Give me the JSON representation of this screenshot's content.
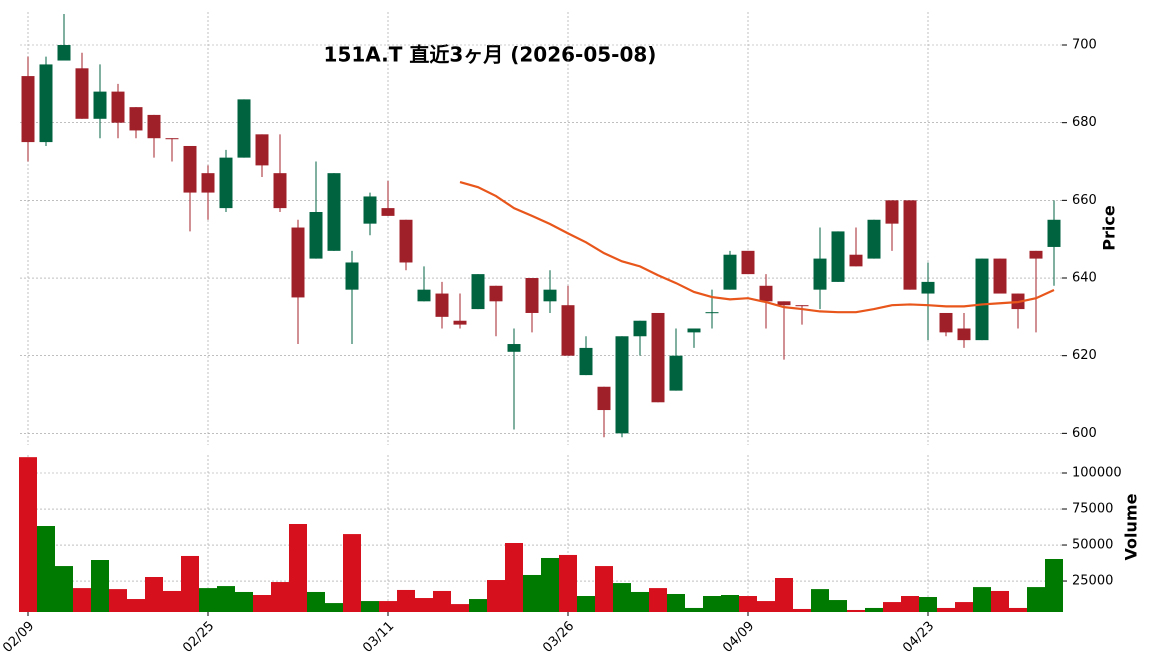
{
  "chart_data": {
    "type": "candlestick",
    "title": "151A.T  直近3ヶ月  (2026-05-08)",
    "ylabel": "Price",
    "categories": [
      "02/09",
      null,
      null,
      null,
      null,
      null,
      null,
      null,
      null,
      null,
      "02/25",
      null,
      null,
      null,
      null,
      null,
      null,
      null,
      null,
      null,
      "03/11",
      null,
      null,
      null,
      null,
      null,
      null,
      null,
      null,
      null,
      "03/26",
      null,
      null,
      null,
      null,
      null,
      null,
      null,
      null,
      null,
      "04/09",
      null,
      null,
      null,
      null,
      null,
      null,
      null,
      null,
      null,
      "04/23",
      null,
      null,
      null,
      null,
      null,
      null,
      null
    ],
    "open": [
      692,
      675,
      696,
      694,
      681,
      688,
      684,
      682,
      676,
      674,
      667,
      658,
      671,
      677,
      667,
      653,
      645,
      647,
      637,
      654,
      658,
      655,
      634,
      636,
      629,
      632,
      638,
      621,
      640,
      634,
      633,
      615,
      612,
      600,
      625,
      631,
      611,
      626,
      631,
      637,
      647,
      638,
      634,
      633,
      637,
      639,
      646,
      645,
      660,
      660,
      636,
      631,
      627,
      624,
      645,
      636,
      647,
      648
    ],
    "high": [
      697,
      697,
      708,
      698,
      695,
      690,
      684,
      682,
      676,
      674,
      669,
      673,
      686,
      677,
      677,
      655,
      670,
      667,
      647,
      662,
      665,
      655,
      643,
      639,
      636,
      641,
      638,
      627,
      640,
      642,
      638,
      625,
      612,
      625,
      629,
      631,
      627,
      627,
      637,
      647,
      647,
      641,
      634,
      633,
      653,
      652,
      653,
      655,
      660,
      660,
      644,
      631,
      631,
      645,
      645,
      636,
      647,
      660
    ],
    "low": [
      670,
      674,
      696,
      681,
      676,
      676,
      676,
      671,
      670,
      652,
      655,
      657,
      671,
      666,
      657,
      623,
      645,
      647,
      623,
      651,
      656,
      642,
      634,
      627,
      627,
      632,
      625,
      601,
      626,
      631,
      620,
      615,
      599,
      599,
      620,
      608,
      611,
      622,
      627,
      637,
      641,
      627,
      619,
      628,
      632,
      639,
      643,
      645,
      647,
      637,
      624,
      625,
      622,
      624,
      636,
      627,
      626,
      638
    ],
    "close": [
      675,
      695,
      700,
      681,
      688,
      680,
      678,
      676,
      675.8,
      662,
      662,
      671,
      686,
      669,
      658,
      635,
      657,
      667,
      644,
      661,
      656,
      644,
      637,
      630,
      628,
      641,
      634,
      623,
      631,
      637,
      620,
      622,
      606,
      625,
      629,
      608,
      620,
      627,
      631.2,
      646,
      641,
      634,
      633,
      632.8,
      645,
      652,
      643,
      655,
      654,
      637,
      639,
      626,
      624,
      645,
      636,
      632,
      645,
      655
    ],
    "up_color": "#006340",
    "down_color": "#a0202a",
    "ma_values": [
      null,
      null,
      null,
      null,
      null,
      null,
      null,
      null,
      null,
      null,
      null,
      null,
      null,
      null,
      null,
      null,
      null,
      null,
      null,
      null,
      null,
      null,
      null,
      null,
      664.7,
      663.4,
      661.1,
      658,
      656,
      653.9,
      651.5,
      649.2,
      646.4,
      644.3,
      643,
      640.7,
      638.7,
      636.4,
      635.1,
      634.5,
      634.8,
      633.8,
      632.5,
      632,
      631.4,
      631.2,
      631.2,
      632,
      633,
      633.2,
      633,
      632.7,
      632.7,
      633.2,
      633.5,
      633.8,
      634.8,
      636.9
    ],
    "ma_color": "#e8561b",
    "ylim": [
      597,
      708.5
    ],
    "yticks": [
      600,
      620,
      640,
      660,
      680,
      700
    ],
    "grid": true,
    "volume": {
      "ylabel": "Volume",
      "values": [
        111000,
        63200,
        35400,
        20100,
        39600,
        19400,
        12500,
        27800,
        18100,
        42400,
        20100,
        21500,
        17400,
        15300,
        24300,
        64600,
        17400,
        9700,
        57600,
        11100,
        11100,
        18800,
        13200,
        18100,
        9000,
        12500,
        25700,
        51400,
        29200,
        41000,
        43100,
        14600,
        35400,
        23600,
        17400,
        20100,
        16000,
        6300,
        14600,
        15300,
        14600,
        11100,
        27100,
        5600,
        19400,
        11800,
        4900,
        6300,
        10400,
        14600,
        13900,
        6300,
        10400,
        20800,
        18100,
        6300,
        20800,
        40300
      ],
      "up_color": "#007a00",
      "down_color": "#d6101c",
      "ylim": [
        3500,
        112500
      ],
      "yticks": [
        25000,
        50000,
        75000,
        100000
      ]
    }
  }
}
